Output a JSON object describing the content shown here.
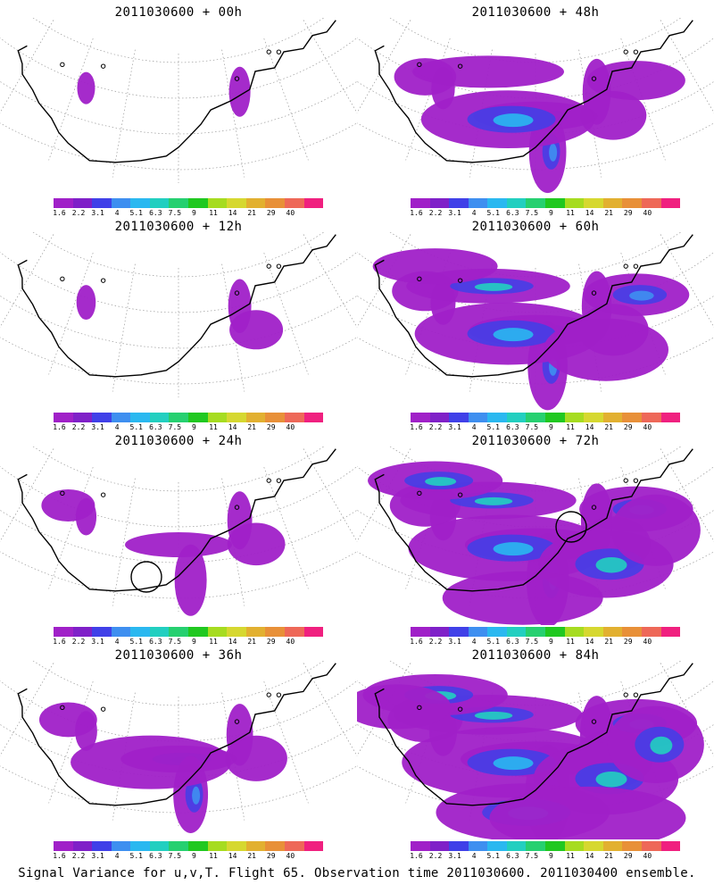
{
  "panels": [
    {
      "title": "2011030600 + 00h",
      "level": 0
    },
    {
      "title": "2011030600 + 48h",
      "level": 4
    },
    {
      "title": "2011030600 + 12h",
      "level": 1
    },
    {
      "title": "2011030600 + 60h",
      "level": 5
    },
    {
      "title": "2011030600 + 24h",
      "level": 2,
      "circle": [
        0.41,
        0.73
      ]
    },
    {
      "title": "2011030600 + 72h",
      "level": 6,
      "circle": [
        0.6,
        0.45
      ]
    },
    {
      "title": "2011030600 + 36h",
      "level": 3
    },
    {
      "title": "2011030600 + 84h",
      "level": 7
    }
  ],
  "colorbar": {
    "labels": [
      "1.6",
      "2.2",
      "3.1",
      "4",
      "5.1",
      "6.3",
      "7.5",
      "9",
      "11",
      "14",
      "21",
      "29",
      "40"
    ],
    "colors": [
      "#a020c8",
      "#7f20c8",
      "#4040e8",
      "#3e8ff0",
      "#2ab8f0",
      "#22cfc0",
      "#26d070",
      "#20c820",
      "#a6dc20",
      "#d6d830",
      "#e2b030",
      "#e89038",
      "#ee6858",
      "#f0207f"
    ]
  },
  "caption": "Signal Variance for u,v,T. Flight 65. Observation time 2011030600. 2011030400 ensemble."
}
